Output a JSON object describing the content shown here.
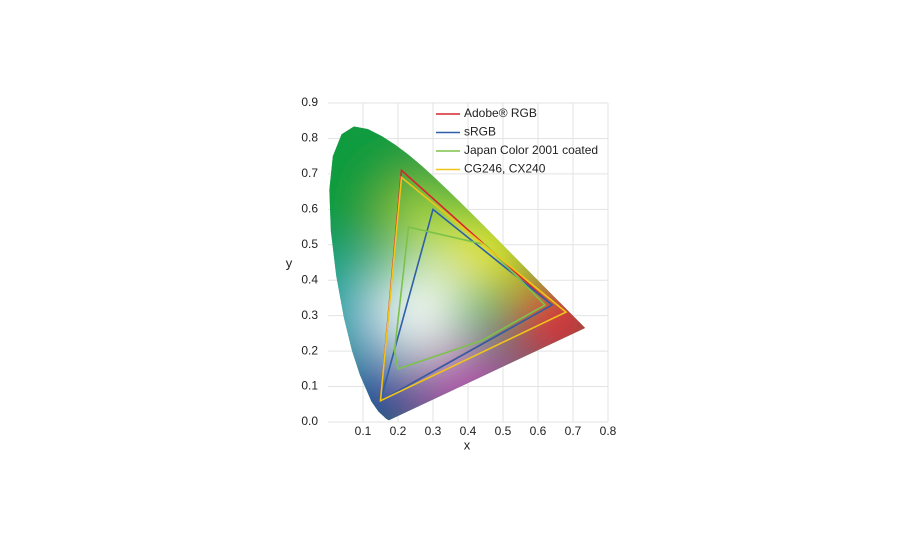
{
  "chart_data": {
    "type": "polygon",
    "x_label": "x",
    "y_label": "y",
    "xlim": [
      0,
      0.8
    ],
    "ylim": [
      0,
      0.9
    ],
    "xticks": [
      0.1,
      0.2,
      0.3,
      0.4,
      0.5,
      0.6,
      0.7,
      0.8
    ],
    "yticks": [
      {
        "value": 0,
        "label": "0.0"
      },
      0.1,
      0.2,
      0.3,
      0.4,
      0.5,
      0.6,
      0.7,
      0.8,
      0.9
    ],
    "grid": true,
    "legend": "top",
    "spectral_locus": {
      "x": [
        0.1741,
        0.1666,
        0.144,
        0.1241,
        0.0913,
        0.0687,
        0.0454,
        0.0235,
        0.0082,
        0.0039,
        0.0139,
        0.0389,
        0.0743,
        0.1142,
        0.1547,
        0.1929,
        0.2296,
        0.2658,
        0.3016,
        0.3373,
        0.3731,
        0.4087,
        0.4441,
        0.4788,
        0.5125,
        0.5448,
        0.5752,
        0.6029,
        0.627,
        0.6482,
        0.6658,
        0.6915,
        0.7347
      ],
      "y": [
        0.005,
        0.0089,
        0.0297,
        0.0578,
        0.1327,
        0.2007,
        0.295,
        0.4127,
        0.5384,
        0.6548,
        0.7502,
        0.812,
        0.8338,
        0.8262,
        0.8059,
        0.7816,
        0.7543,
        0.7243,
        0.6923,
        0.6589,
        0.6245,
        0.5896,
        0.5547,
        0.5202,
        0.4866,
        0.4544,
        0.4242,
        0.3965,
        0.3725,
        0.3514,
        0.334,
        0.3083,
        0.2653
      ]
    },
    "series": [
      {
        "name": "Adobe® RGB",
        "color": "#d7262e",
        "x": [
          0.64,
          0.21,
          0.15
        ],
        "y": [
          0.33,
          0.71,
          0.06
        ]
      },
      {
        "name": "sRGB",
        "color": "#2f5fa8",
        "x": [
          0.64,
          0.3,
          0.15
        ],
        "y": [
          0.33,
          0.6,
          0.06
        ]
      },
      {
        "name": "Japan Color 2001 coated",
        "color": "#7cc24a",
        "x": [
          0.23,
          0.45,
          0.62,
          0.44,
          0.2,
          0.19
        ],
        "y": [
          0.55,
          0.5,
          0.33,
          0.23,
          0.15,
          0.2
        ]
      },
      {
        "name": "CG246, CX240",
        "color": "#f0c419",
        "x": [
          0.68,
          0.21,
          0.15
        ],
        "y": [
          0.31,
          0.69,
          0.06
        ]
      }
    ]
  }
}
